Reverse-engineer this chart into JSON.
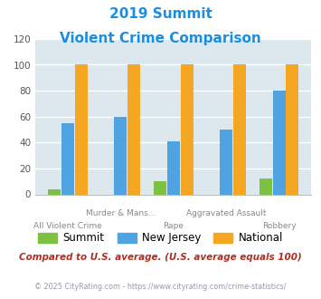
{
  "title_line1": "2019 Summit",
  "title_line2": "Violent Crime Comparison",
  "title_color": "#1a8fe0",
  "categories": [
    "All Violent Crime",
    "Murder & Mans...",
    "Rape",
    "Aggravated Assault",
    "Robbery"
  ],
  "summit_values": [
    4,
    0,
    10,
    0,
    12
  ],
  "nj_values": [
    55,
    60,
    41,
    50,
    80
  ],
  "national_values": [
    100,
    100,
    100,
    100,
    100
  ],
  "summit_color": "#7dc142",
  "nj_color": "#4fa3e0",
  "national_color": "#f5a623",
  "ylim": [
    0,
    120
  ],
  "yticks": [
    0,
    20,
    40,
    60,
    80,
    100,
    120
  ],
  "bg_color": "#dce8ed",
  "grid_color": "#ffffff",
  "footnote1": "Compared to U.S. average. (U.S. average equals 100)",
  "footnote1_color": "#b03020",
  "footnote2": "© 2025 CityRating.com - https://www.cityrating.com/crime-statistics/",
  "footnote2_color": "#9999aa"
}
